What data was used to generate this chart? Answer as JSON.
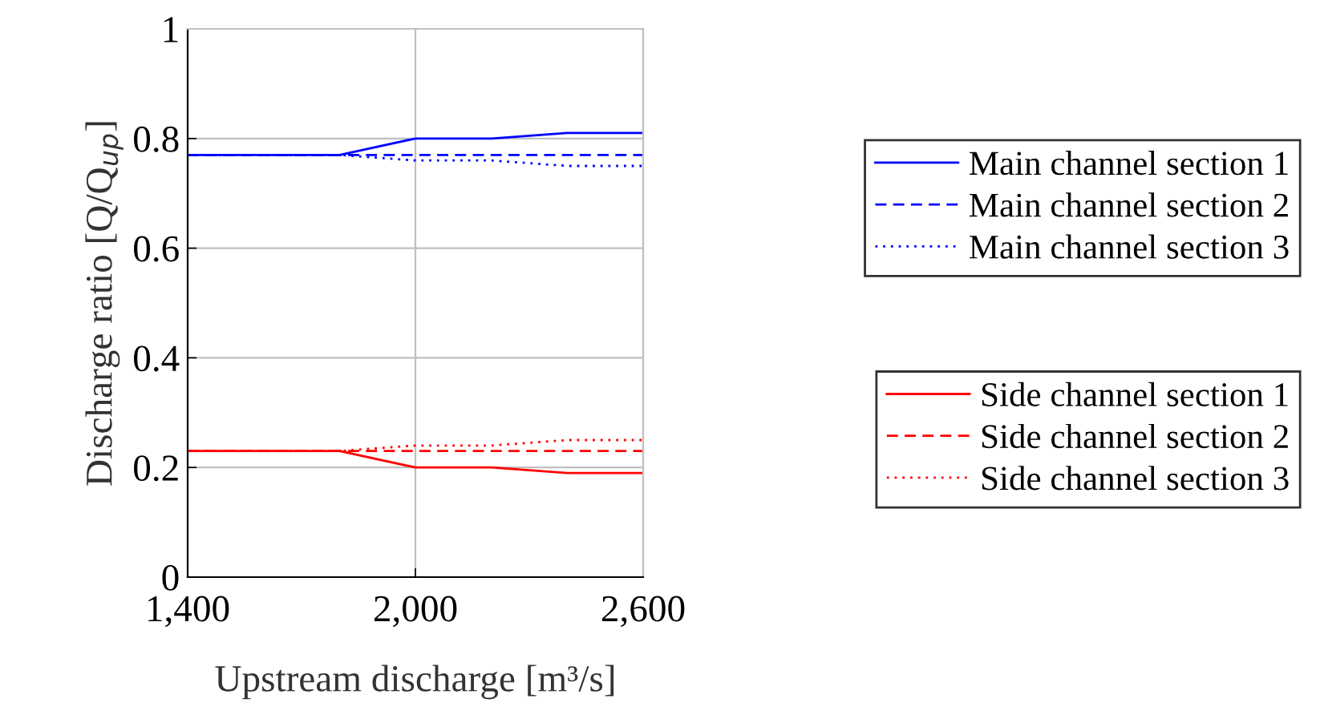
{
  "chart_data": {
    "type": "line",
    "xlabel": "Upstream discharge [m³/s]",
    "ylabel": "Discharge ratio [Q/Q$_{up}$]",
    "x": [
      1400,
      1800,
      2000,
      2200,
      2400,
      2600
    ],
    "xlim": [
      1400,
      2600
    ],
    "xticks": [
      {
        "value": 1400,
        "label": "1,400"
      },
      {
        "value": 2000,
        "label": "2,000"
      },
      {
        "value": 2600,
        "label": "2,600"
      }
    ],
    "ylim": [
      0,
      1
    ],
    "yticks": [
      0,
      0.2,
      0.4,
      0.6,
      0.8,
      1
    ],
    "grid": true,
    "legend": "right",
    "marker": "none",
    "series": [
      {
        "name": "Main channel section 1",
        "color": "#0000ff",
        "line_style": "solid",
        "values": [
          0.77,
          0.77,
          0.8,
          0.8,
          0.81,
          0.81
        ]
      },
      {
        "name": "Main channel section 2",
        "color": "#0000ff",
        "line_style": "dashed",
        "values": [
          0.77,
          0.77,
          0.77,
          0.77,
          0.77,
          0.77
        ]
      },
      {
        "name": "Main channel section 3",
        "color": "#0000ff",
        "line_style": "dotted",
        "values": [
          0.77,
          0.77,
          0.76,
          0.76,
          0.75,
          0.75
        ]
      },
      {
        "name": "Side channel section 1",
        "color": "#ff0000",
        "line_style": "solid",
        "values": [
          0.23,
          0.23,
          0.2,
          0.2,
          0.19,
          0.19
        ]
      },
      {
        "name": "Side channel section 2",
        "color": "#ff0000",
        "line_style": "dashed",
        "values": [
          0.23,
          0.23,
          0.23,
          0.23,
          0.23,
          0.23
        ]
      },
      {
        "name": "Side channel section 3",
        "color": "#ff0000",
        "line_style": "dotted",
        "values": [
          0.23,
          0.23,
          0.24,
          0.24,
          0.25,
          0.25
        ]
      }
    ]
  }
}
